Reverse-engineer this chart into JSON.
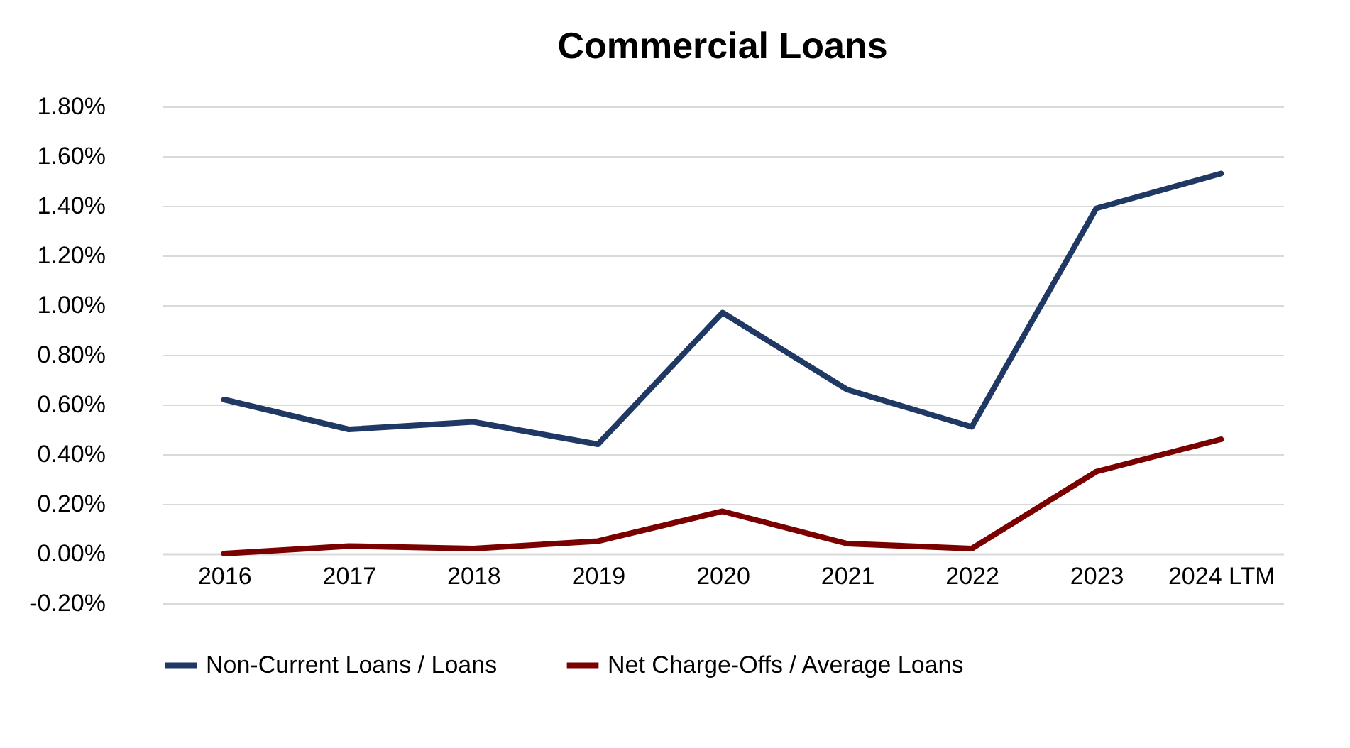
{
  "chart_data": {
    "type": "line",
    "title": "Commercial Loans",
    "categories": [
      "2016",
      "2017",
      "2018",
      "2019",
      "2020",
      "2021",
      "2022",
      "2023",
      "2024 LTM"
    ],
    "series": [
      {
        "name": "Non-Current Loans / Loans",
        "color": "#1f3864",
        "values": [
          0.62,
          0.5,
          0.53,
          0.44,
          0.97,
          0.66,
          0.51,
          1.39,
          1.53
        ]
      },
      {
        "name": "Net Charge-Offs / Average Loans",
        "color": "#7b0000",
        "values": [
          0.0,
          0.03,
          0.02,
          0.05,
          0.17,
          0.04,
          0.02,
          0.33,
          0.46
        ]
      }
    ],
    "ylim": [
      -0.2,
      1.8
    ],
    "yticks": [
      {
        "value": -0.2,
        "label": "-0.20%"
      },
      {
        "value": 0,
        "label": "0.00%"
      },
      {
        "value": 0.2,
        "label": "0.20%"
      },
      {
        "value": 0.4,
        "label": "0.40%"
      },
      {
        "value": 0.6,
        "label": "0.60%"
      },
      {
        "value": 0.8,
        "label": "0.80%"
      },
      {
        "value": 1.0,
        "label": "1.00%"
      },
      {
        "value": 1.2,
        "label": "1.20%"
      },
      {
        "value": 1.4,
        "label": "1.40%"
      },
      {
        "value": 1.6,
        "label": "1.60%"
      },
      {
        "value": 1.8,
        "label": "1.80%"
      }
    ],
    "grid": "y",
    "legend": "bottom",
    "marker": "none",
    "line_style": "solid"
  }
}
